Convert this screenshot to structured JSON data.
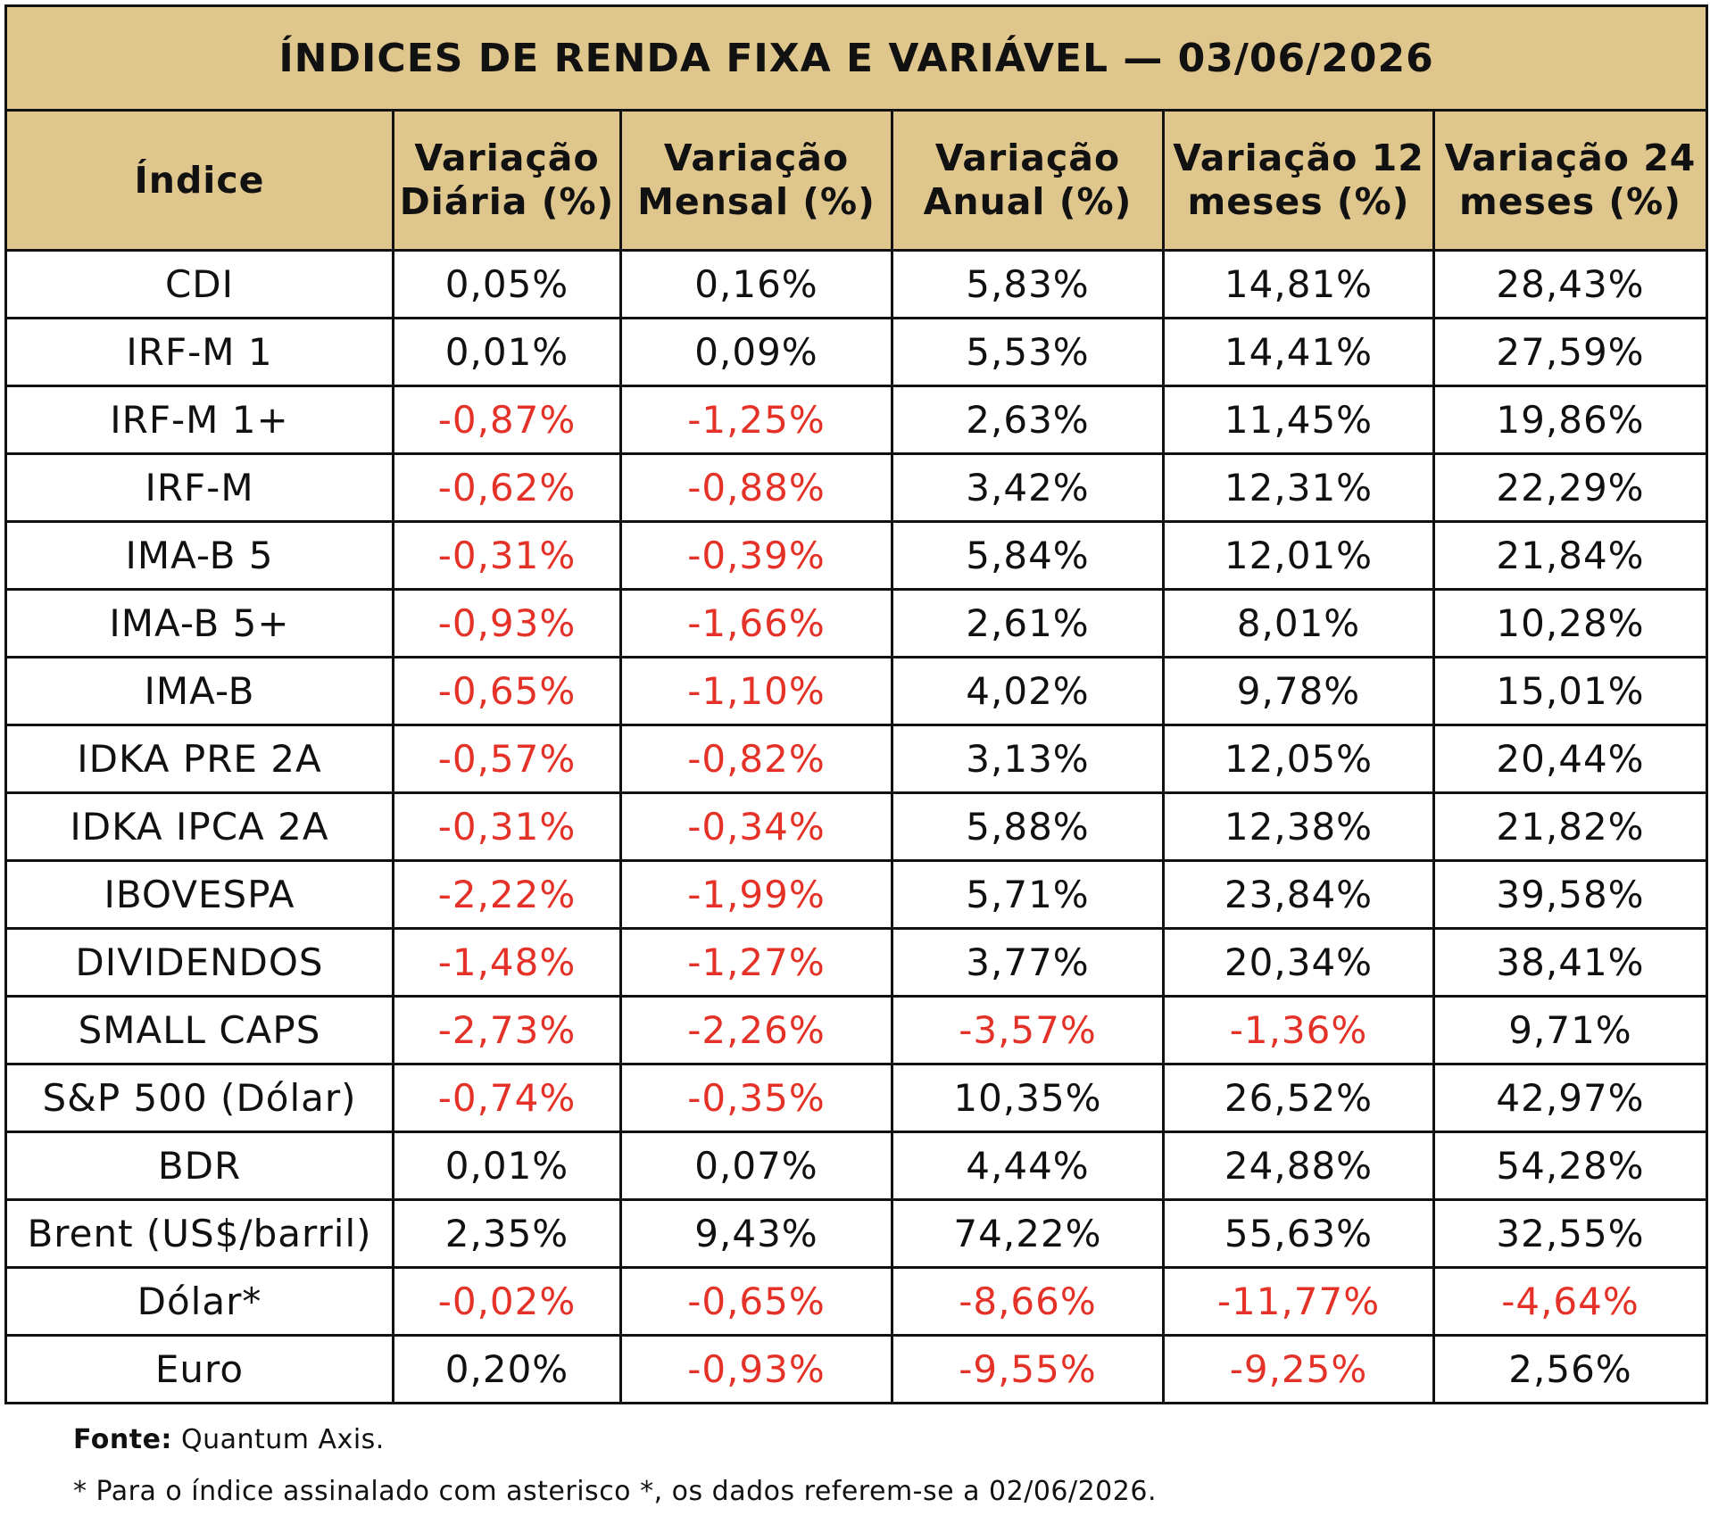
{
  "header": {
    "title": "ÍNDICES DE RENDA FIXA E VARIÁVEL — 03/06/2026"
  },
  "table": {
    "columns": [
      "Índice",
      "Variação Diária (%)",
      "Variação Mensal (%)",
      "Variação Anual (%)",
      "Variação 12 meses (%)",
      "Variação 24 meses (%)"
    ],
    "rows": [
      [
        "CDI",
        "0,05%",
        "0,16%",
        "5,83%",
        "14,81%",
        "28,43%"
      ],
      [
        "IRF-M 1",
        "0,01%",
        "0,09%",
        "5,53%",
        "14,41%",
        "27,59%"
      ],
      [
        "IRF-M 1+",
        "-0,87%",
        "-1,25%",
        "2,63%",
        "11,45%",
        "19,86%"
      ],
      [
        "IRF-M",
        "-0,62%",
        "-0,88%",
        "3,42%",
        "12,31%",
        "22,29%"
      ],
      [
        "IMA-B 5",
        "-0,31%",
        "-0,39%",
        "5,84%",
        "12,01%",
        "21,84%"
      ],
      [
        "IMA-B 5+",
        "-0,93%",
        "-1,66%",
        "2,61%",
        "8,01%",
        "10,28%"
      ],
      [
        "IMA-B",
        "-0,65%",
        "-1,10%",
        "4,02%",
        "9,78%",
        "15,01%"
      ],
      [
        "IDKA PRE 2A",
        "-0,57%",
        "-0,82%",
        "3,13%",
        "12,05%",
        "20,44%"
      ],
      [
        "IDKA IPCA 2A",
        "-0,31%",
        "-0,34%",
        "5,88%",
        "12,38%",
        "21,82%"
      ],
      [
        "IBOVESPA",
        "-2,22%",
        "-1,99%",
        "5,71%",
        "23,84%",
        "39,58%"
      ],
      [
        "DIVIDENDOS",
        "-1,48%",
        "-1,27%",
        "3,77%",
        "20,34%",
        "38,41%"
      ],
      [
        "SMALL CAPS",
        "-2,73%",
        "-2,26%",
        "-3,57%",
        "-1,36%",
        "9,71%"
      ],
      [
        "S&P 500 (Dólar)",
        "-0,74%",
        "-0,35%",
        "10,35%",
        "26,52%",
        "42,97%"
      ],
      [
        "BDR",
        "0,01%",
        "0,07%",
        "4,44%",
        "24,88%",
        "54,28%"
      ],
      [
        "Brent (US$/barril)",
        "2,35%",
        "9,43%",
        "74,22%",
        "55,63%",
        "32,55%"
      ],
      [
        "Dólar*",
        "-0,02%",
        "-0,65%",
        "-8,66%",
        "-11,77%",
        "-4,64%"
      ],
      [
        "Euro",
        "0,20%",
        "-0,93%",
        "-9,55%",
        "-9,25%",
        "2,56%"
      ]
    ]
  },
  "footer": {
    "source_label": "Fonte:",
    "source": "Quantum Axis.",
    "note": "* Para o índice assinalado com asterisco *, os dados referem-se a 02/06/2026."
  }
}
